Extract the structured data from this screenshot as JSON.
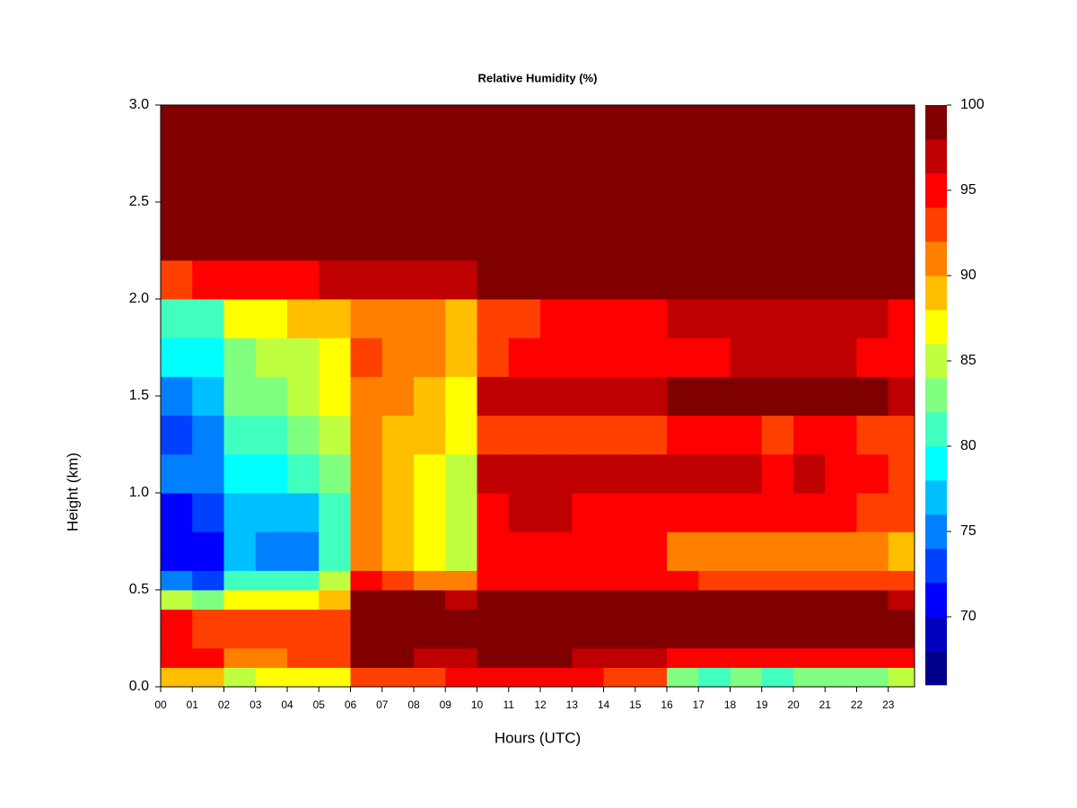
{
  "chart_data": {
    "type": "heatmap",
    "title": "Relative Humidity (%)",
    "xlabel": "Hours (UTC)",
    "ylabel": "Height (km)",
    "x_bins": [
      0,
      1,
      2,
      3,
      4,
      5,
      6,
      7,
      8,
      9,
      10,
      11,
      12,
      13,
      14,
      15,
      16,
      17,
      18,
      19,
      20,
      21,
      22,
      23,
      23.83
    ],
    "y_bins": [
      0,
      0.1,
      0.2,
      0.4,
      0.5,
      0.6,
      0.8,
      1.0,
      1.2,
      1.4,
      1.6,
      1.8,
      2.0,
      2.2,
      2.5,
      3.0
    ],
    "z": [
      [
        88,
        88,
        84,
        86,
        86,
        87,
        92,
        93,
        93,
        94,
        95,
        95,
        94,
        94,
        93,
        93,
        82,
        81,
        82,
        81,
        82,
        83,
        82,
        84
      ],
      [
        94,
        94,
        90,
        91,
        92,
        92,
        98,
        98,
        97,
        97,
        98,
        98,
        98,
        97,
        97,
        97,
        95,
        95,
        94,
        94,
        95,
        95,
        95,
        95
      ],
      [
        94,
        93,
        92,
        92,
        93,
        93,
        99,
        99,
        99,
        98,
        99,
        99,
        99,
        99,
        99,
        99,
        99,
        99,
        99,
        99,
        99,
        99,
        99,
        98
      ],
      [
        84,
        82,
        86,
        86,
        86,
        88,
        99,
        98,
        98,
        96,
        99,
        99,
        99,
        99,
        99,
        99,
        99,
        99,
        99,
        99,
        99,
        99,
        98,
        97
      ],
      [
        74,
        72,
        80,
        80,
        81,
        84,
        94,
        92,
        90,
        90,
        95,
        95,
        95,
        94,
        95,
        95,
        94,
        93,
        93,
        92,
        92,
        93,
        92,
        92
      ],
      [
        71,
        70,
        76,
        75,
        75,
        80,
        90,
        89,
        86,
        85,
        94,
        95,
        95,
        94,
        94,
        94,
        91,
        90,
        90,
        90,
        91,
        90,
        90,
        89
      ],
      [
        71,
        72,
        77,
        77,
        77,
        80,
        90,
        88,
        86,
        84,
        95,
        96,
        96,
        95,
        95,
        95,
        94,
        94,
        95,
        94,
        95,
        94,
        93,
        92
      ],
      [
        74,
        75,
        78,
        79,
        80,
        83,
        90,
        89,
        87,
        85,
        96,
        97,
        97,
        96,
        96,
        96,
        96,
        96,
        96,
        95,
        96,
        95,
        94,
        93
      ],
      [
        73,
        75,
        80,
        81,
        82,
        84,
        90,
        89,
        88,
        86,
        93,
        93,
        93,
        93,
        93,
        93,
        94,
        94,
        94,
        93,
        94,
        94,
        93,
        93
      ],
      [
        75,
        77,
        82,
        83,
        84,
        86,
        91,
        90,
        89,
        87,
        96,
        97,
        97,
        97,
        97,
        97,
        98,
        98,
        98,
        98,
        98,
        98,
        98,
        97
      ],
      [
        78,
        79,
        83,
        84,
        85,
        87,
        92,
        91,
        91,
        89,
        93,
        94,
        94,
        95,
        95,
        95,
        95,
        95,
        96,
        96,
        96,
        96,
        95,
        95
      ],
      [
        80,
        81,
        86,
        86,
        88,
        89,
        91,
        91,
        90,
        89,
        92,
        93,
        94,
        94,
        95,
        95,
        96,
        96,
        96,
        96,
        96,
        96,
        96,
        95
      ],
      [
        93,
        94,
        95,
        95,
        95,
        96,
        96,
        97,
        97,
        97,
        98,
        98,
        98,
        98,
        99,
        99,
        99,
        99,
        99,
        99,
        99,
        99,
        99,
        99
      ],
      [
        98,
        99,
        99,
        99,
        99,
        99,
        99,
        99,
        99,
        99,
        99,
        99,
        99,
        99,
        99,
        99,
        99,
        99,
        99,
        99,
        99,
        99,
        99,
        99
      ],
      [
        98,
        98,
        98,
        99,
        99,
        99,
        99,
        99,
        99,
        99,
        99,
        99,
        99,
        99,
        99,
        99,
        99,
        99,
        99,
        99,
        99,
        99,
        99,
        99
      ]
    ],
    "xlim": [
      0,
      23.83
    ],
    "ylim": [
      0,
      3.0
    ],
    "xticks": [
      {
        "value": 0,
        "label": "00"
      },
      {
        "value": 1,
        "label": "01"
      },
      {
        "value": 2,
        "label": "02"
      },
      {
        "value": 3,
        "label": "03"
      },
      {
        "value": 4,
        "label": "04"
      },
      {
        "value": 5,
        "label": "05"
      },
      {
        "value": 6,
        "label": "06"
      },
      {
        "value": 7,
        "label": "07"
      },
      {
        "value": 8,
        "label": "08"
      },
      {
        "value": 9,
        "label": "09"
      },
      10,
      11,
      12,
      13,
      14,
      15,
      16,
      17,
      18,
      19,
      20,
      21,
      22,
      23
    ],
    "yticks": [
      {
        "value": 0,
        "label": "0.0"
      },
      {
        "value": 0.5,
        "label": "0.5"
      },
      {
        "value": 1,
        "label": "1.0"
      },
      {
        "value": 1.5,
        "label": "1.5"
      },
      {
        "value": 2,
        "label": "2.0"
      },
      {
        "value": 2.5,
        "label": "2.5"
      },
      {
        "value": 3,
        "label": "3.0"
      }
    ],
    "zlevels": [
      66,
      68,
      70,
      72,
      74,
      76,
      78,
      80,
      82,
      84,
      86,
      88,
      90,
      92,
      94,
      96,
      98,
      100
    ],
    "colors": [
      "#00008b",
      "#0000bf",
      "#0000ff",
      "#0040ff",
      "#0080ff",
      "#00bfff",
      "#00ffff",
      "#40ffbf",
      "#80ff80",
      "#bfff40",
      "#ffff00",
      "#ffbf00",
      "#ff8000",
      "#ff4000",
      "#ff0000",
      "#bf0000",
      "#800000"
    ],
    "zticks": [
      70,
      75,
      80,
      85,
      90,
      95,
      100
    ]
  }
}
